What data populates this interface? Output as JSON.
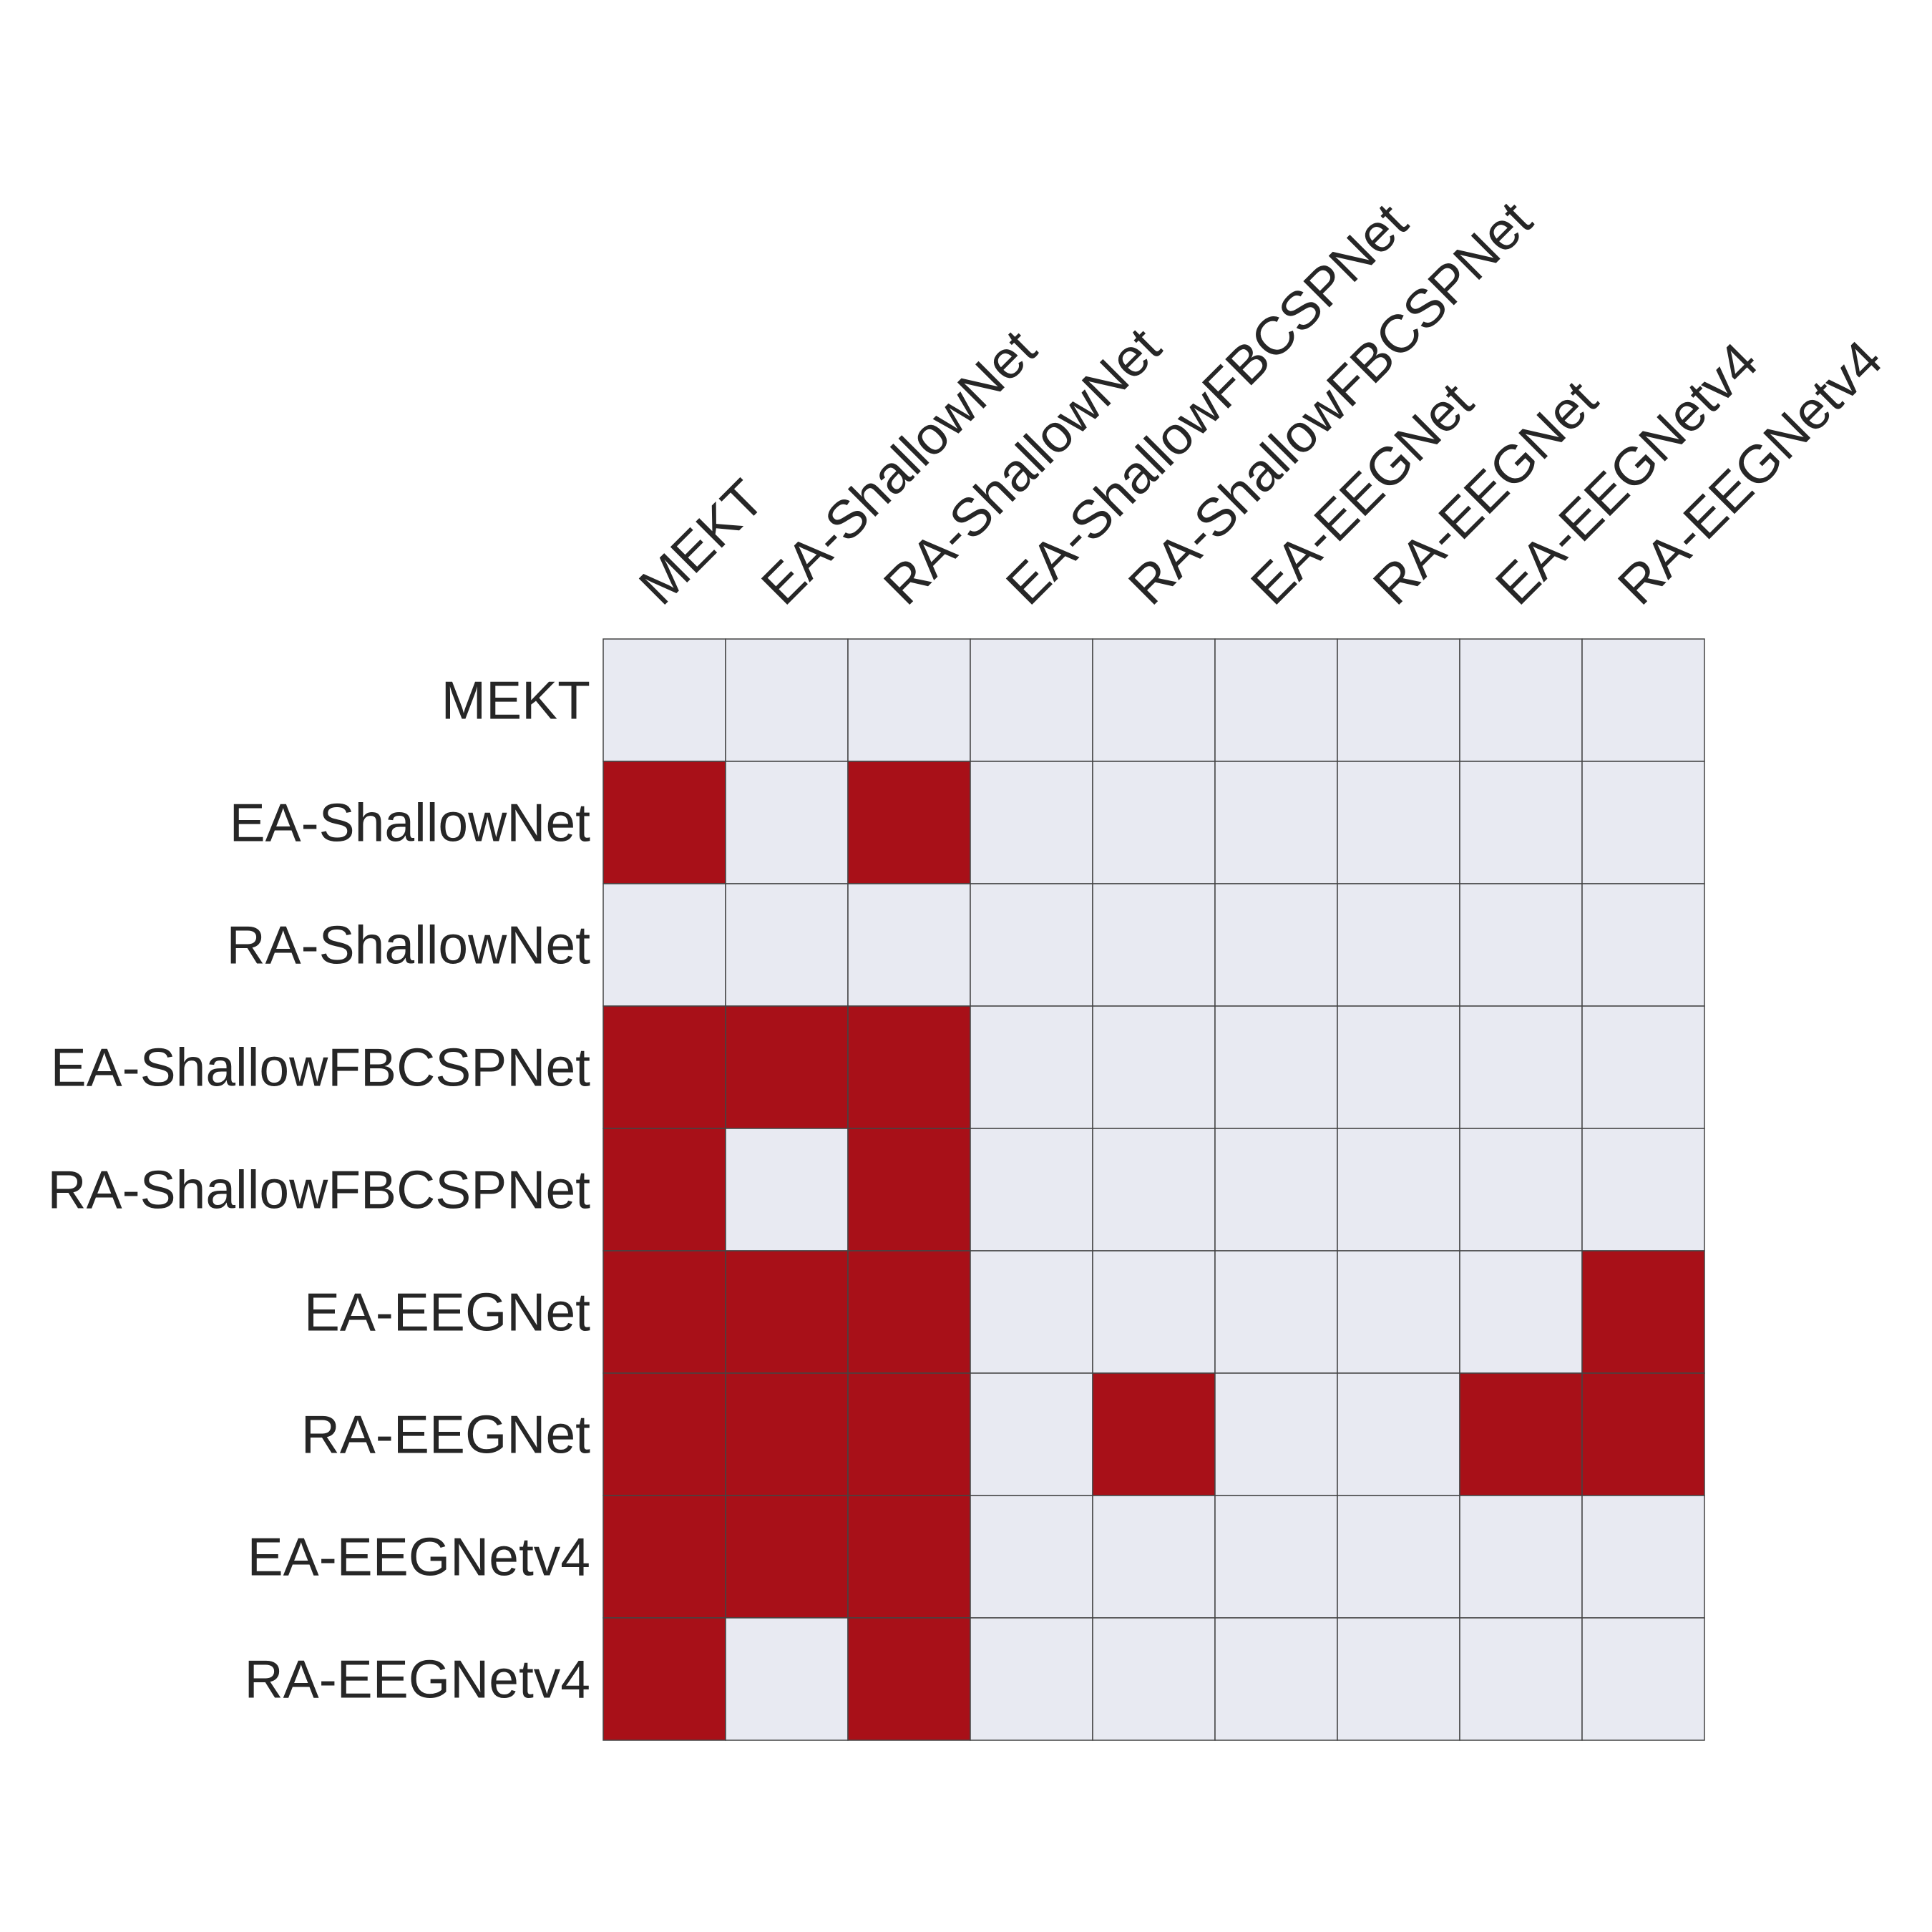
{
  "chart_data": {
    "type": "heatmap",
    "title": "",
    "xlabel": "",
    "ylabel": "",
    "x_categories": [
      "MEKT",
      "EA-ShallowNet",
      "RA-ShallowNet",
      "EA-ShallowFBCSPNet",
      "RA-ShallowFBCSPNet",
      "EA-EEGNet",
      "RA-EEGNet",
      "EA-EEGNetv4",
      "RA-EEGNetv4"
    ],
    "y_categories": [
      "MEKT",
      "EA-ShallowNet",
      "RA-ShallowNet",
      "EA-ShallowFBCSPNet",
      "RA-ShallowFBCSPNet",
      "EA-EEGNet",
      "RA-EEGNet",
      "EA-EEGNetv4",
      "RA-EEGNetv4"
    ],
    "values": [
      [
        0,
        0,
        0,
        0,
        0,
        0,
        0,
        0,
        0
      ],
      [
        1,
        0,
        1,
        0,
        0,
        0,
        0,
        0,
        0
      ],
      [
        0,
        0,
        0,
        0,
        0,
        0,
        0,
        0,
        0
      ],
      [
        1,
        1,
        1,
        0,
        0,
        0,
        0,
        0,
        0
      ],
      [
        1,
        0,
        1,
        0,
        0,
        0,
        0,
        0,
        0
      ],
      [
        1,
        1,
        1,
        0,
        0,
        0,
        0,
        0,
        1
      ],
      [
        1,
        1,
        1,
        0,
        1,
        0,
        0,
        1,
        1
      ],
      [
        1,
        1,
        1,
        0,
        0,
        0,
        0,
        0,
        0
      ],
      [
        1,
        0,
        1,
        0,
        0,
        0,
        0,
        0,
        0
      ]
    ],
    "x_tick_position": "top",
    "x_tick_rotation_deg": 45,
    "grid": true,
    "colors": {
      "on": "#a81018",
      "off": "#e8eaf2",
      "cell_border": "#444444",
      "text": "#262626"
    }
  }
}
